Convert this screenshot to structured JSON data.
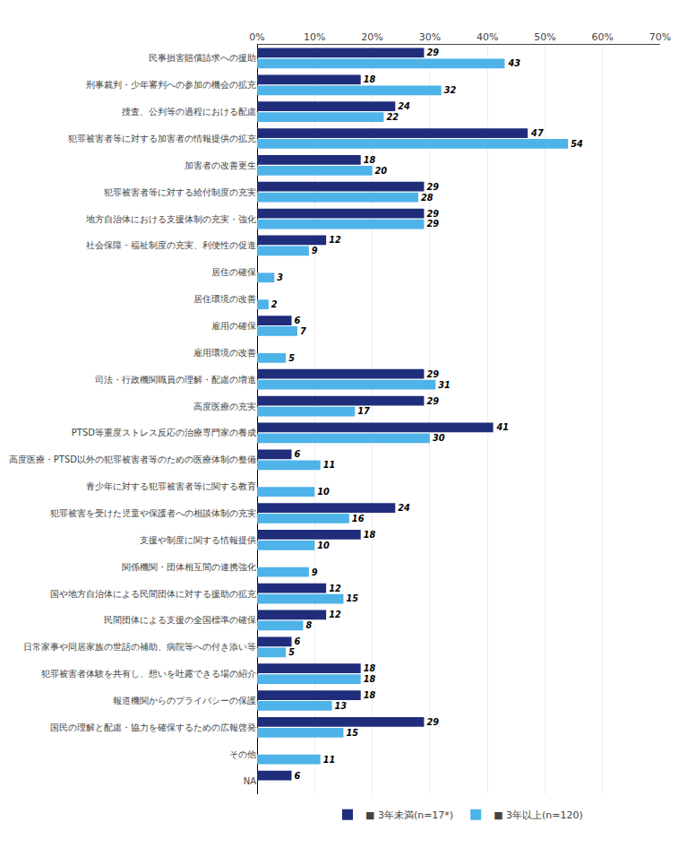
{
  "chart_data": {
    "type": "bar",
    "orientation": "horizontal",
    "categories": [
      "民事損害賠償請求への援助",
      "刑事裁判・少年審判への参加の機会の拡充",
      "捜査、公判等の過程における配慮",
      "犯罪被害者等に対する加害者の情報提供の拡充",
      "加害者の改善更生",
      "犯罪被害者等に対する給付制度の充実",
      "地方自治体における支援体制の充実・強化",
      "社会保障・福祉制度の充実、利便性の促進",
      "居住の確保",
      "居住環境の改善",
      "雇用の確保",
      "雇用環境の改善",
      "司法・行政機関職員の理解・配慮の増進",
      "高度医療の充実",
      "PTSD等重度ストレス反応の治療専門家の養成",
      "高度医療・PTSD以外の犯罪被害者等のための医療体制の整備",
      "青少年に対する犯罪被害者等に関する教育",
      "犯罪被害を受けた児童や保護者への相談体制の充実",
      "支援や制度に関する情報提供",
      "関係機関・団体相互間の連携強化",
      "国や地方自治体による民間団体に対する援助の拡充",
      "民間団体による支援の全国標準の確保",
      "日常家事や同居家族の世話の補助、病院等への付き添い等",
      "犯罪被害者体験を共有し、想いを吐露できる場の紹介",
      "報道機関からのプライバシーの保護",
      "国民の理解と配慮・協力を確保するための広報啓発",
      "その他",
      "NA"
    ],
    "series": [
      {
        "name": "■ 3年未満(n=17*)",
        "color": "#1f2d7b",
        "values": [
          29,
          18,
          24,
          47,
          18,
          29,
          29,
          12,
          0,
          0,
          6,
          0,
          29,
          29,
          41,
          6,
          0,
          24,
          18,
          0,
          12,
          12,
          6,
          18,
          18,
          29,
          0,
          6
        ],
        "value_labels": [
          "29",
          "18",
          "24",
          "47",
          "18",
          "29",
          "29",
          "12",
          null,
          null,
          "6",
          null,
          "29",
          "29",
          "41",
          "6",
          null,
          "24",
          "18",
          null,
          "12",
          "12",
          "6",
          "18",
          "18",
          "29",
          null,
          "6"
        ]
      },
      {
        "name": "■ 3年以上(n=120)",
        "color": "#4db3e8",
        "values": [
          43,
          32,
          22,
          54,
          20,
          28,
          29,
          9,
          3,
          2,
          7,
          5,
          31,
          17,
          30,
          11,
          10,
          16,
          10,
          9,
          15,
          8,
          5,
          18,
          13,
          15,
          11,
          0
        ],
        "value_labels": [
          "43",
          "32",
          "22",
          "54",
          "20",
          "28",
          "29",
          "9",
          "3",
          "2",
          "7",
          "5",
          "31",
          "17",
          "30",
          "11",
          "10",
          "16",
          "10",
          "9",
          "15",
          "8",
          "5",
          "18",
          "13",
          "15",
          "11",
          null
        ]
      }
    ],
    "xlim": [
      0,
      70
    ],
    "xticks": [
      {
        "value": 0,
        "label": "0%"
      },
      {
        "value": 10,
        "label": "10%"
      },
      {
        "value": 20,
        "label": "20%"
      },
      {
        "value": 30,
        "label": "30%"
      },
      {
        "value": 40,
        "label": "40%"
      },
      {
        "value": 50,
        "label": "50%"
      },
      {
        "value": 60,
        "label": "60%"
      },
      {
        "value": 70,
        "label": "70%"
      }
    ],
    "grid": true,
    "legend": "bottom",
    "data_labels": true
  }
}
